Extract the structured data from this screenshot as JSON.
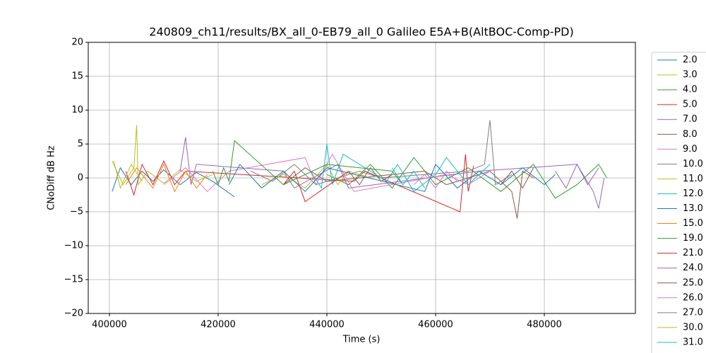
{
  "chart_data": {
    "type": "line",
    "title": "240809_ch11/results/BX_all_0-EB79_all_0 Galileo E5A+B(AltBOC-Comp-PD)",
    "x_label": "Time (s)",
    "y_label": "CNoDiff dB Hz",
    "xlim": [
      396104,
      496753
    ],
    "ylim": [
      -20,
      20
    ],
    "xticks": [
      400000,
      420000,
      440000,
      460000,
      480000
    ],
    "yticks": [
      {
        "value": -20,
        "label": "−20"
      },
      {
        "value": -15,
        "label": "−15"
      },
      {
        "value": -10,
        "label": "−10"
      },
      {
        "value": -5,
        "label": "−5"
      },
      0,
      5,
      10,
      15,
      20
    ],
    "grid": true,
    "series": [
      {
        "name": "2.0",
        "color": "#1f77b4",
        "x": [
          400500,
          402000,
          404000,
          406000,
          408000,
          410000,
          413000,
          416000,
          419000,
          423000
        ],
        "values": [
          -2,
          1.5,
          -1,
          1,
          -0.5,
          1.2,
          -1,
          0.8,
          -0.5,
          -2.8
        ]
      },
      {
        "name": "3.0",
        "color": "#bcbd22",
        "x": [
          400500,
          402500,
          404500,
          405000,
          405300,
          407000,
          410000,
          413000,
          416000,
          419000
        ],
        "values": [
          2.5,
          -1,
          1.5,
          7.8,
          -1,
          1,
          -0.8,
          1.2,
          -0.5,
          0.5
        ]
      },
      {
        "name": "4.0",
        "color": "#2ca02c",
        "x": [
          440000,
          444000,
          448000,
          452000,
          456000,
          460000,
          466000,
          472000,
          478000,
          482000,
          486000,
          490000,
          491500
        ],
        "values": [
          0.5,
          -1,
          2,
          -1.5,
          3,
          -1,
          1.5,
          -2,
          2,
          -3,
          -1,
          2,
          0
        ]
      },
      {
        "name": "5.0",
        "color": "#d62728",
        "x": [
          403000,
          404500,
          406000,
          408000,
          410000,
          412000,
          414000,
          445000,
          447000,
          464500,
          465500,
          466000,
          467000
        ],
        "values": [
          1,
          -2.5,
          2,
          -1,
          2.5,
          -1,
          1,
          -0.5,
          1,
          -5,
          3.5,
          -2,
          1.8
        ]
      },
      {
        "name": "7.0",
        "color": "#9467bd",
        "x": [
          413000,
          414000,
          415000,
          416000,
          432000,
          434000,
          442000,
          444000,
          468000,
          486000,
          489000,
          490000,
          491000
        ],
        "values": [
          1,
          6,
          -1,
          2,
          1,
          -1.5,
          2,
          -1.5,
          1,
          2,
          -2,
          -4.5,
          0
        ]
      },
      {
        "name": "8.0",
        "color": "#8c564b",
        "x": [
          432000,
          436000,
          440000,
          458000,
          462000,
          470000,
          474000,
          475000,
          476000,
          478000
        ],
        "values": [
          -1,
          1.5,
          -0.5,
          1,
          -1,
          1,
          -2,
          -6,
          1,
          0
        ]
      },
      {
        "name": "9.0",
        "color": "#e377c2",
        "x": [
          410000,
          414000,
          418000,
          422000,
          436000,
          438000,
          441000,
          445000,
          462000,
          466000,
          470000
        ],
        "values": [
          -1,
          1.5,
          -2,
          1,
          3,
          -1,
          3.5,
          -2,
          0.5,
          -1,
          1
        ]
      },
      {
        "name": "10.0",
        "color": "#7f7f7f",
        "x": [
          426000,
          430000,
          434000,
          438000,
          446000,
          450000,
          466000,
          469000,
          470000,
          471000,
          474000
        ],
        "values": [
          1,
          -0.5,
          2,
          -1,
          1,
          0,
          1,
          2,
          8.5,
          -1,
          0.5
        ]
      },
      {
        "name": "11.0",
        "color": "#bcbd22",
        "x": [
          428000,
          432000,
          436000,
          440000,
          442000,
          444000,
          448000
        ],
        "values": [
          -1,
          0.5,
          -1.5,
          2,
          -1,
          1,
          0
        ]
      },
      {
        "name": "12.0",
        "color": "#17becf",
        "x": [
          437000,
          439000,
          440000,
          441000,
          443000,
          447000,
          451000,
          453000,
          456000,
          460000,
          462000,
          466000,
          470000
        ],
        "values": [
          1,
          -1.5,
          5,
          -1,
          3.5,
          1.5,
          -0.5,
          2,
          -2,
          0.5,
          3,
          -1,
          2
        ]
      },
      {
        "name": "13.0",
        "color": "#1f77b4",
        "x": [
          422000,
          424000,
          428000,
          432000,
          436000,
          440000,
          458000,
          460000,
          464000,
          468000,
          472000,
          476000,
          480000,
          482000
        ],
        "values": [
          -1,
          2,
          -1.5,
          1,
          -2,
          1.5,
          -2,
          2,
          -1.5,
          1,
          -1,
          1.5,
          -1,
          0.5
        ]
      },
      {
        "name": "15.0",
        "color": "#ff7f0e",
        "x": [
          403000,
          405000,
          408000,
          410000,
          412000,
          414000,
          416000,
          418000
        ],
        "values": [
          -1,
          1.5,
          -1.5,
          2,
          -2,
          1,
          -1.5,
          0.5
        ]
      },
      {
        "name": "19.0",
        "color": "#2ca02c",
        "x": [
          419000,
          420000,
          421000,
          422000,
          423000,
          432000,
          440000,
          452000,
          454000
        ],
        "values": [
          1,
          -1,
          1.5,
          -0.5,
          5.5,
          -1,
          2,
          1,
          -1
        ]
      },
      {
        "name": "21.0",
        "color": "#d62728",
        "x": [
          432000,
          434000,
          436000,
          444000,
          446000,
          448000,
          450000,
          452000
        ],
        "values": [
          -1,
          1,
          -3.5,
          1,
          -1,
          1.5,
          -0.5,
          0.5
        ]
      },
      {
        "name": "24.0",
        "color": "#9467bd",
        "x": [
          482000,
          484000,
          486000,
          488000,
          490000
        ],
        "values": [
          1,
          -1.5,
          2,
          -1,
          1.5
        ]
      },
      {
        "name": "25.0",
        "color": "#8c564b",
        "x": [
          472000,
          474000,
          476000,
          478000
        ],
        "values": [
          -1,
          1,
          -1.5,
          1.5
        ]
      },
      {
        "name": "26.0",
        "color": "#e377c2",
        "x": [
          456000,
          458000,
          460000,
          462000,
          464000
        ],
        "values": [
          -1,
          0.5,
          -1.5,
          1,
          -0.5
        ]
      },
      {
        "name": "27.0",
        "color": "#7f7f7f",
        "x": [
          444000,
          446000,
          448000,
          450000
        ],
        "values": [
          1,
          -1,
          1.5,
          -0.5
        ]
      },
      {
        "name": "30.0",
        "color": "#bcbd22",
        "x": [
          400800,
          402000,
          404000,
          406000
        ],
        "values": [
          2.5,
          -1.5,
          2,
          -0.5
        ]
      },
      {
        "name": "31.0",
        "color": "#17becf",
        "x": [
          452000,
          454000,
          456000,
          458000
        ],
        "values": [
          1.5,
          -1,
          1,
          -1.5
        ]
      }
    ]
  }
}
